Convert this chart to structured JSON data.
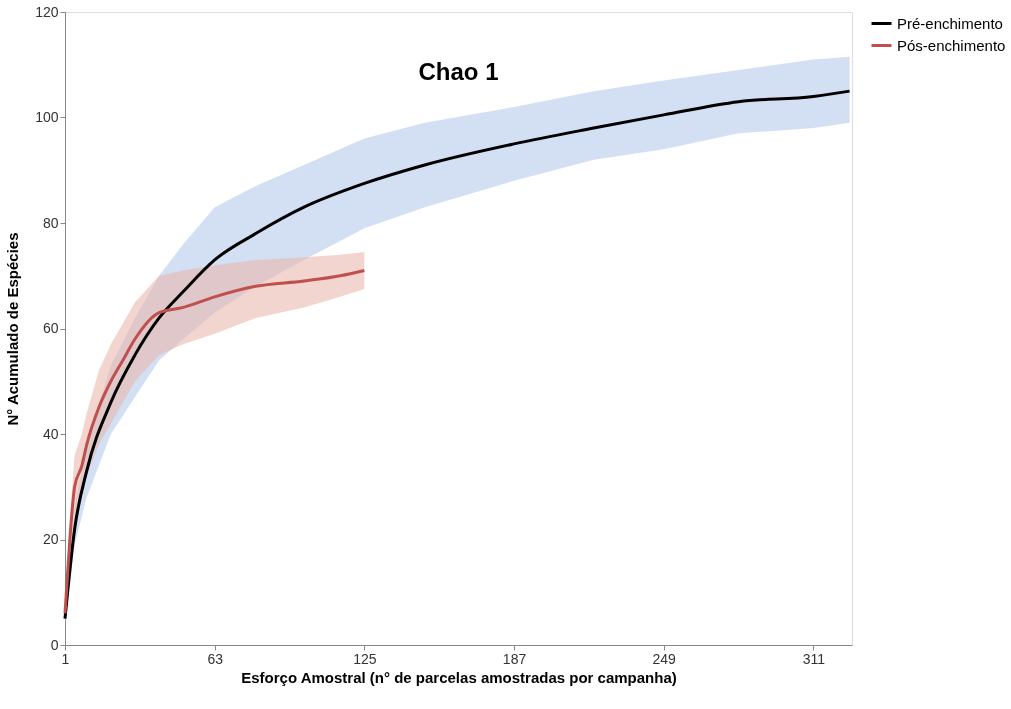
{
  "chart_data": {
    "type": "line",
    "title": "Chao 1",
    "xlabel": "Esforço Amostral (n° de parcelas amostradas por campanha)",
    "ylabel": "N° Acumulado de Espécies",
    "xlim": [
      1,
      327
    ],
    "xticks": [
      1,
      63,
      125,
      187,
      249,
      311
    ],
    "ylim": [
      0,
      120
    ],
    "yticks": [
      0,
      20,
      40,
      60,
      80,
      100,
      120
    ],
    "grid": false,
    "legend": "right",
    "marker": "none",
    "line_style": "solid",
    "series": [
      {
        "name": "Pré-enchimento",
        "color": "#000000",
        "x": [
          1,
          5,
          10,
          20,
          30,
          40,
          50,
          63,
          80,
          100,
          125,
          150,
          187,
          220,
          249,
          280,
          311,
          326
        ],
        "values": [
          5,
          22,
          33,
          46,
          55,
          62,
          67,
          73,
          78,
          83,
          87.5,
          91,
          95,
          98,
          100.5,
          103,
          104,
          105
        ],
        "lower": [
          4,
          19,
          28,
          40,
          47,
          54,
          58,
          63,
          68,
          73,
          79,
          83,
          88,
          92,
          94,
          97,
          98,
          99
        ],
        "upper": [
          6,
          26,
          38,
          53,
          62,
          70,
          76,
          83,
          87,
          91,
          96,
          99,
          102,
          105,
          107,
          109,
          111,
          111.5
        ]
      },
      {
        "name": "Pós-enchimento",
        "color": "#c0504d",
        "x": [
          1,
          3,
          5,
          8,
          10,
          15,
          20,
          25,
          30,
          40,
          50,
          63,
          80,
          100,
          115,
          125
        ],
        "values": [
          6,
          20,
          30,
          34,
          38,
          45,
          50,
          54,
          58,
          63,
          64,
          66,
          68,
          69,
          70,
          71
        ],
        "lower": [
          5,
          16,
          25,
          28,
          32,
          38,
          42,
          46,
          50,
          55,
          57,
          59,
          62,
          64,
          66,
          67.5
        ],
        "upper": [
          7,
          24,
          36,
          40,
          44,
          52,
          57,
          61,
          65,
          70,
          71,
          72,
          73,
          73.5,
          74,
          74.5
        ]
      }
    ]
  }
}
